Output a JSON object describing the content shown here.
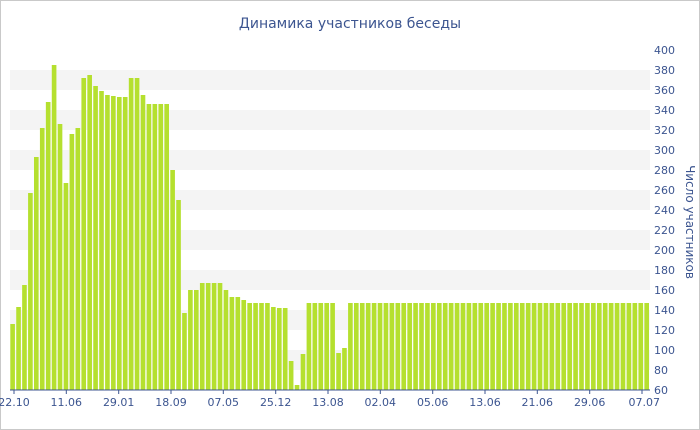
{
  "chart_data": {
    "type": "bar",
    "title": "Динамика участников беседы",
    "ylabel": "Число участников",
    "ylim": [
      60,
      400
    ],
    "yticks": [
      60,
      80,
      100,
      120,
      140,
      160,
      180,
      200,
      220,
      240,
      260,
      280,
      300,
      320,
      340,
      360,
      380,
      400
    ],
    "xticks": [
      "22.10",
      "11.06",
      "29.01",
      "18.09",
      "07.05",
      "25.12",
      "13.08",
      "02.04",
      "05.06",
      "13.06",
      "21.06",
      "29.06",
      "07.07"
    ],
    "grid": true,
    "legend": "none",
    "bar_color": "#b5e02f",
    "values": [
      126,
      143,
      165,
      257,
      293,
      322,
      348,
      385,
      326,
      267,
      316,
      322,
      372,
      375,
      364,
      359,
      355,
      354,
      353,
      353,
      372,
      372,
      355,
      346,
      346,
      346,
      346,
      280,
      250,
      137,
      160,
      160,
      167,
      167,
      167,
      167,
      160,
      153,
      153,
      150,
      147,
      147,
      147,
      147,
      143,
      142,
      142,
      89,
      65,
      96,
      147,
      147,
      147,
      147,
      147,
      97,
      102,
      147,
      147,
      147,
      147,
      147,
      147,
      147,
      147,
      147,
      147,
      147,
      147,
      147,
      147,
      147,
      147,
      147,
      147,
      147,
      147,
      147,
      147,
      147,
      147,
      147,
      147,
      147,
      147,
      147,
      147,
      147,
      147,
      147,
      147,
      147,
      147,
      147,
      147,
      147,
      147,
      147,
      147,
      147,
      147,
      147,
      147,
      147,
      147,
      147,
      147,
      147
    ]
  }
}
